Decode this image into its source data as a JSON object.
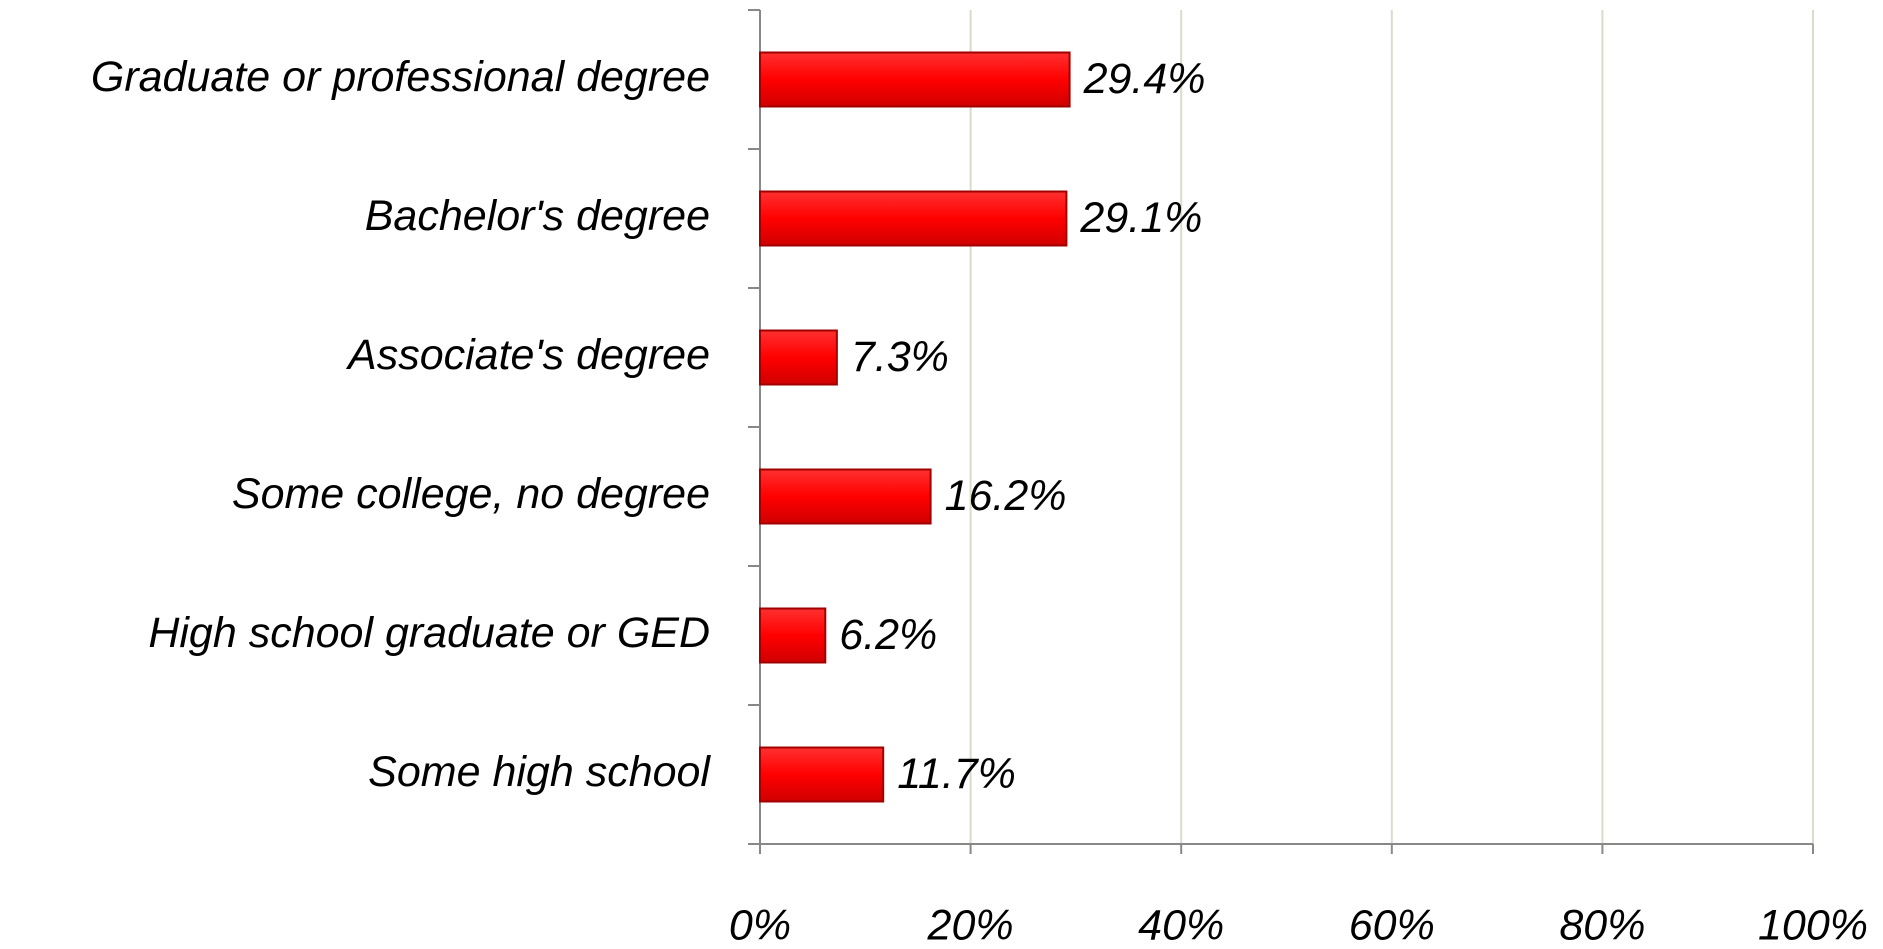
{
  "chart_data": {
    "type": "bar",
    "orientation": "horizontal",
    "categories": [
      "Graduate or professional degree",
      "Bachelor's degree",
      "Associate's degree",
      "Some college, no degree",
      "High school graduate or GED",
      "Some high school"
    ],
    "values": [
      29.4,
      29.1,
      7.3,
      16.2,
      6.2,
      11.7
    ],
    "value_labels": [
      "29.4%",
      "29.1%",
      "7.3%",
      "16.2%",
      "6.2%",
      "11.7%"
    ],
    "color": "#ff0000",
    "xlim": [
      0,
      100
    ],
    "xticks": [
      {
        "value": 0,
        "label": "0%"
      },
      {
        "value": 20,
        "label": "20%"
      },
      {
        "value": 40,
        "label": "40%"
      },
      {
        "value": 60,
        "label": "60%"
      },
      {
        "value": 80,
        "label": "80%"
      },
      {
        "value": 100,
        "label": "100%"
      }
    ],
    "grid": true
  }
}
